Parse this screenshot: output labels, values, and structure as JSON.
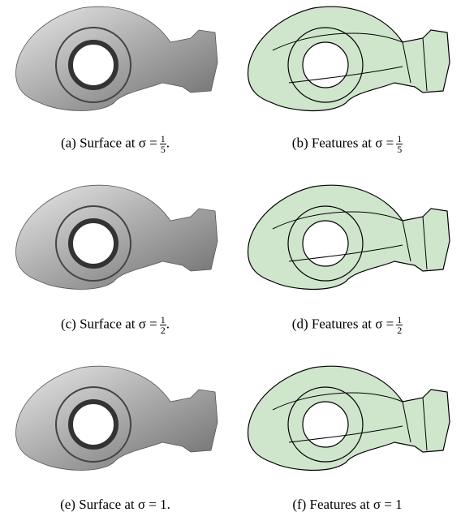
{
  "figures": [
    {
      "caption": {
        "prefix": "(a) Surface at σ =",
        "numerator": "1",
        "denominator": "5",
        "suffix": "."
      }
    },
    {
      "caption": {
        "prefix": "(b) Features at σ =",
        "numerator": "1",
        "denominator": "5"
      }
    },
    {
      "caption": {
        "prefix": "(c) Surface at σ =",
        "numerator": "1",
        "denominator": "2",
        "suffix": "."
      }
    },
    {
      "caption": {
        "prefix": "(d) Features at σ =",
        "numerator": "1",
        "denominator": "2"
      }
    },
    {
      "caption": {
        "prefix": "(e) Surface at σ = 1."
      }
    },
    {
      "caption": {
        "prefix": "(f) Features at σ = 1"
      }
    }
  ]
}
